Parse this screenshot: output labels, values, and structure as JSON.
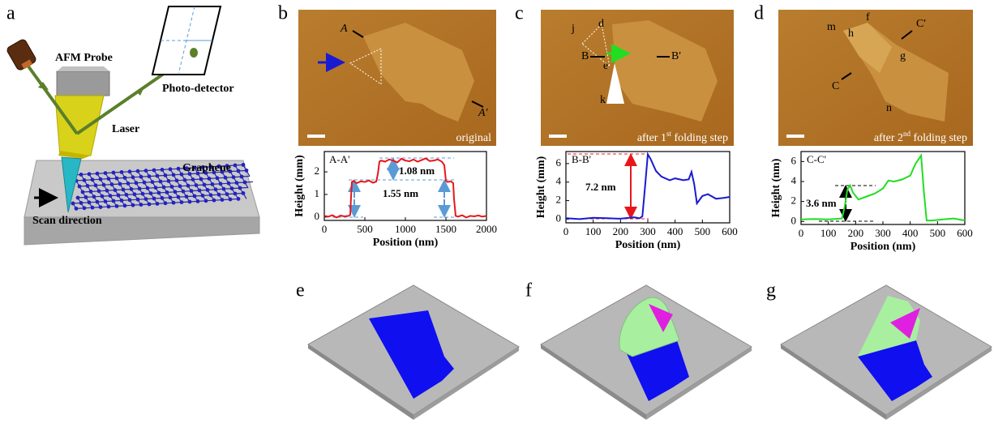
{
  "panel_labels": [
    "a",
    "b",
    "c",
    "d",
    "e",
    "f",
    "g"
  ],
  "schematic": {
    "probe": "AFM Probe",
    "detector": "Photo-detector",
    "laser": "Laser",
    "graphene": "Graphene",
    "scan": "Scan direction"
  },
  "afm_images": [
    {
      "labels": [
        "A",
        "A'"
      ],
      "caption": [
        "original"
      ]
    },
    {
      "labels": [
        "j",
        "d",
        "B",
        "B'",
        "e",
        "k"
      ],
      "caption": [
        "after 1",
        "st",
        " folding step"
      ]
    },
    {
      "labels": [
        "f",
        "m",
        "h",
        "C'",
        "C",
        "g",
        "n"
      ],
      "caption": [
        "after 2",
        "nd",
        " folding step"
      ]
    }
  ],
  "chart_data": [
    {
      "type": "line",
      "xlabel": "Position (nm)",
      "ylabel": "Height (mm)",
      "annotations": [
        "A-A'",
        "1.08 nm",
        "1.55 nm"
      ],
      "xlim": [
        0,
        2000
      ],
      "xticks": [
        0,
        500,
        1000,
        1500,
        2000
      ],
      "ylim": [
        -0.15,
        2.9
      ],
      "yticks": [
        0,
        1,
        2
      ],
      "x": [
        0,
        50,
        100,
        150,
        200,
        250,
        300,
        320,
        330,
        340,
        360,
        400,
        450,
        500,
        550,
        600,
        640,
        660,
        680,
        700,
        750,
        800,
        850,
        900,
        950,
        1000,
        1050,
        1100,
        1150,
        1200,
        1250,
        1300,
        1350,
        1400,
        1450,
        1480,
        1500,
        1520,
        1560,
        1590,
        1600,
        1620,
        1650,
        1700,
        1750,
        1800,
        1850,
        1900,
        1950,
        2000
      ],
      "series": [
        {
          "color": "#e8161b",
          "values": [
            0.05,
            0.02,
            0.08,
            -0.02,
            0.06,
            0.03,
            0.05,
            0.1,
            0.9,
            1.55,
            1.6,
            1.5,
            1.58,
            1.55,
            1.62,
            1.52,
            1.57,
            1.9,
            2.45,
            2.5,
            2.45,
            2.55,
            2.5,
            2.42,
            2.58,
            2.5,
            2.47,
            2.55,
            2.45,
            2.52,
            2.6,
            2.48,
            2.5,
            2.55,
            2.45,
            2.3,
            1.6,
            1.55,
            1.58,
            1.5,
            0.8,
            0.05,
            0.02,
            0.08,
            -0.02,
            0.05,
            0.03,
            0.07,
            0.02,
            0.05
          ]
        }
      ]
    },
    {
      "type": "line",
      "xlabel": "Position (nm)",
      "ylabel": "Height (mm)",
      "annotations": [
        "B-B'",
        "7.2 nm"
      ],
      "xlim": [
        0,
        600
      ],
      "xticks": [
        0,
        100,
        200,
        300,
        400,
        500,
        600
      ],
      "ylim": [
        -0.4,
        7.3
      ],
      "yticks": [
        0,
        2,
        4,
        6
      ],
      "x": [
        0,
        50,
        100,
        150,
        200,
        250,
        270,
        280,
        290,
        300,
        310,
        330,
        350,
        380,
        400,
        430,
        450,
        460,
        470,
        480,
        500,
        520,
        550,
        580,
        600
      ],
      "series": [
        {
          "color": "#1a1ad0",
          "values": [
            0.1,
            0.0,
            0.15,
            0.1,
            0.05,
            0.2,
            0.1,
            0.3,
            3.5,
            7.0,
            6.5,
            5.2,
            4.6,
            4.2,
            4.4,
            4.2,
            4.3,
            5.1,
            3.8,
            1.7,
            2.5,
            2.7,
            2.2,
            2.3,
            2.4
          ]
        }
      ]
    },
    {
      "type": "line",
      "xlabel": "Position (nm)",
      "ylabel": "Height (nm)",
      "annotations": [
        "C-C'",
        "3.6 nm"
      ],
      "xlim": [
        0,
        600
      ],
      "xticks": [
        0,
        100,
        200,
        300,
        400,
        500,
        600
      ],
      "ylim": [
        -0.3,
        7.0
      ],
      "yticks": [
        0,
        2,
        4,
        6
      ],
      "x": [
        0,
        50,
        100,
        150,
        160,
        170,
        180,
        190,
        210,
        240,
        270,
        300,
        320,
        340,
        370,
        400,
        420,
        440,
        450,
        460,
        480,
        520,
        560,
        600
      ],
      "series": [
        {
          "color": "#22dd22",
          "values": [
            0.2,
            0.25,
            0.2,
            0.3,
            1.5,
            3.2,
            3.6,
            2.9,
            2.2,
            2.5,
            2.8,
            3.3,
            4.1,
            4.0,
            4.2,
            4.6,
            5.8,
            6.6,
            3.0,
            0.1,
            0.1,
            0.2,
            0.3,
            0.1
          ]
        }
      ]
    }
  ]
}
